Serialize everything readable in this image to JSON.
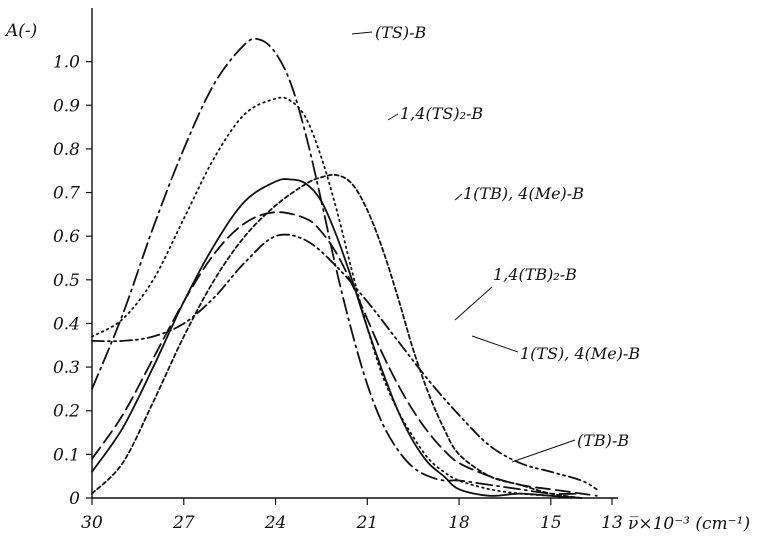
{
  "chart_data": {
    "type": "line",
    "ylabel": "A(-)",
    "xlabel": "ν̅×10⁻³ (cm⁻¹)",
    "x_ticks": [
      "30",
      "27",
      "24",
      "21",
      "18",
      "15",
      "13"
    ],
    "x_tick_values": [
      30,
      27,
      24,
      21,
      18,
      15,
      13
    ],
    "y_ticks": [
      "0",
      "0.1",
      "0.2",
      "0.3",
      "0.4",
      "0.5",
      "0.6",
      "0.7",
      "0.8",
      "0.9",
      "1.0"
    ],
    "y_tick_values": [
      0,
      0.1,
      0.2,
      0.3,
      0.4,
      0.5,
      0.6,
      0.7,
      0.8,
      0.9,
      1.0
    ],
    "xlim": [
      30,
      13
    ],
    "ylim": [
      0,
      1.1
    ],
    "x_reversed": true,
    "grid": false,
    "series": [
      {
        "name": "(TS)-B",
        "dash": "longdashdot",
        "x": [
          30,
          29,
          28,
          27,
          26,
          25,
          24.5,
          24,
          23.5,
          23,
          22.5,
          22,
          21.5,
          21,
          20.5,
          20,
          19.5,
          19,
          18.5,
          18,
          17,
          16,
          15,
          14
        ],
        "y": [
          0.25,
          0.42,
          0.62,
          0.8,
          0.95,
          1.04,
          1.05,
          1.02,
          0.95,
          0.83,
          0.68,
          0.52,
          0.38,
          0.26,
          0.17,
          0.11,
          0.07,
          0.05,
          0.04,
          0.04,
          0.03,
          0.02,
          0.01,
          0.01
        ]
      },
      {
        "name": "1,4(TS)₂-B",
        "dash": "dotted",
        "x": [
          30,
          29,
          28,
          27,
          26,
          25,
          24,
          23.5,
          23,
          22.5,
          22,
          21.5,
          21,
          20.5,
          20,
          19.5,
          19,
          18.5,
          18,
          17,
          16,
          15,
          14
        ],
        "y": [
          0.37,
          0.41,
          0.5,
          0.64,
          0.78,
          0.88,
          0.915,
          0.91,
          0.87,
          0.78,
          0.66,
          0.52,
          0.39,
          0.28,
          0.2,
          0.14,
          0.09,
          0.06,
          0.04,
          0.02,
          0.01,
          0.005,
          0
        ]
      },
      {
        "name": "1(TB), 4(Me)-B",
        "dash": "shortdash",
        "x": [
          30,
          29,
          28,
          27,
          26,
          25,
          24,
          23,
          22.5,
          22,
          21.5,
          21,
          20.5,
          20,
          19.5,
          19,
          18.5,
          18,
          17,
          16,
          15,
          14
        ],
        "y": [
          0.01,
          0.08,
          0.22,
          0.37,
          0.5,
          0.6,
          0.67,
          0.72,
          0.735,
          0.74,
          0.72,
          0.66,
          0.57,
          0.46,
          0.34,
          0.24,
          0.16,
          0.1,
          0.05,
          0.03,
          0.01,
          0
        ]
      },
      {
        "name": "1,4(TB)₂-B",
        "dash": "solid",
        "x": [
          30,
          29,
          28,
          27,
          26,
          25,
          24,
          23.5,
          23,
          22.5,
          22,
          21.5,
          21,
          20.5,
          20,
          19.5,
          19,
          18.5,
          18,
          17,
          16,
          15,
          14
        ],
        "y": [
          0.06,
          0.16,
          0.3,
          0.45,
          0.58,
          0.68,
          0.725,
          0.73,
          0.72,
          0.68,
          0.6,
          0.5,
          0.39,
          0.29,
          0.2,
          0.13,
          0.08,
          0.05,
          0.02,
          0.005,
          0.01,
          0.005,
          0
        ]
      },
      {
        "name": "1(TS), 4(Me)-B",
        "dash": "dashdotdot",
        "x": [
          30,
          29,
          28,
          27,
          26,
          25,
          24,
          23,
          22,
          21,
          20,
          19,
          18,
          17,
          16,
          15,
          14,
          13.5
        ],
        "y": [
          0.36,
          0.36,
          0.37,
          0.4,
          0.46,
          0.54,
          0.6,
          0.59,
          0.53,
          0.45,
          0.36,
          0.27,
          0.19,
          0.12,
          0.08,
          0.06,
          0.04,
          0.02
        ]
      },
      {
        "name": "(TB)-B",
        "dash": "longdash",
        "x": [
          30,
          29,
          28,
          27,
          26,
          25,
          24,
          23,
          22.5,
          22,
          21.5,
          21,
          20.5,
          20,
          19.5,
          19,
          18.5,
          18,
          17,
          16,
          15,
          14,
          13.5
        ],
        "y": [
          0.09,
          0.19,
          0.32,
          0.45,
          0.56,
          0.63,
          0.655,
          0.64,
          0.61,
          0.56,
          0.49,
          0.41,
          0.33,
          0.26,
          0.2,
          0.15,
          0.11,
          0.08,
          0.05,
          0.03,
          0.02,
          0.01,
          0.005
        ]
      }
    ]
  }
}
